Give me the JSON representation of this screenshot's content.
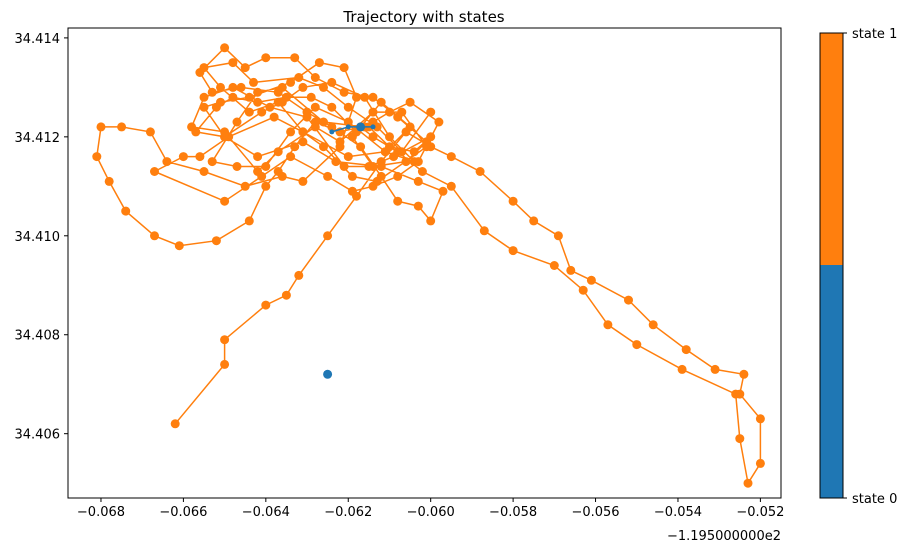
{
  "chart_data": {
    "type": "line",
    "title": "Trajectory with states",
    "xlabel": "",
    "ylabel": "",
    "x_offset_label": "−1.195000000e2",
    "xlim": [
      -0.0688,
      -0.0515
    ],
    "ylim": [
      34.4047,
      34.4142
    ],
    "x_ticks": [
      -0.068,
      -0.066,
      -0.064,
      -0.062,
      -0.06,
      -0.058,
      -0.056,
      -0.054,
      -0.052
    ],
    "x_tick_labels": [
      "−0.068",
      "−0.066",
      "−0.064",
      "−0.062",
      "−0.060",
      "−0.058",
      "−0.056",
      "−0.054",
      "−0.052"
    ],
    "y_ticks": [
      34.406,
      34.408,
      34.41,
      34.412,
      34.414
    ],
    "y_tick_labels": [
      "34.406",
      "34.408",
      "34.410",
      "34.412",
      "34.414"
    ],
    "grid": false,
    "colors": {
      "state_0": "#1f77b4",
      "state_1": "#ff7f0e"
    },
    "colorbar": {
      "labels": [
        "state 0",
        "state 1"
      ]
    },
    "path": [
      [
        -0.0662,
        34.4062
      ],
      [
        -0.065,
        34.4074
      ],
      [
        -0.065,
        34.4079
      ],
      [
        -0.064,
        34.4086
      ],
      [
        -0.0635,
        34.4088
      ],
      [
        -0.0632,
        34.4092
      ],
      [
        -0.0625,
        34.41
      ],
      [
        -0.0618,
        34.4108
      ],
      [
        -0.0612,
        34.4115
      ],
      [
        -0.0606,
        34.4121
      ],
      [
        -0.06,
        34.4118
      ],
      [
        -0.0595,
        34.4116
      ],
      [
        -0.0588,
        34.4113
      ],
      [
        -0.058,
        34.4107
      ],
      [
        -0.0575,
        34.4103
      ],
      [
        -0.0569,
        34.41
      ],
      [
        -0.0566,
        34.4093
      ],
      [
        -0.0561,
        34.4091
      ],
      [
        -0.0552,
        34.4087
      ],
      [
        -0.0546,
        34.4082
      ],
      [
        -0.0538,
        34.4077
      ],
      [
        -0.0531,
        34.4073
      ],
      [
        -0.0524,
        34.4072
      ],
      [
        -0.0525,
        34.4068
      ],
      [
        -0.052,
        34.4063
      ],
      [
        -0.052,
        34.4054
      ],
      [
        -0.0523,
        34.405
      ],
      [
        -0.0525,
        34.4059
      ],
      [
        -0.0526,
        34.4068
      ],
      [
        -0.0539,
        34.4073
      ],
      [
        -0.055,
        34.4078
      ],
      [
        -0.0557,
        34.4082
      ],
      [
        -0.0563,
        34.4089
      ],
      [
        -0.057,
        34.4094
      ],
      [
        -0.058,
        34.4097
      ],
      [
        -0.0587,
        34.4101
      ],
      [
        -0.0595,
        34.411
      ],
      [
        -0.0602,
        34.4113
      ],
      [
        -0.0608,
        34.4117
      ],
      [
        -0.0614,
        34.412
      ],
      [
        -0.0617,
        34.4122
      ],
      [
        -0.0622,
        34.4121
      ],
      [
        -0.0628,
        34.4123
      ],
      [
        -0.0633,
        34.4118
      ],
      [
        -0.0637,
        34.4113
      ],
      [
        -0.064,
        34.411
      ],
      [
        -0.0644,
        34.4103
      ],
      [
        -0.0652,
        34.4099
      ],
      [
        -0.0661,
        34.4098
      ],
      [
        -0.0667,
        34.41
      ],
      [
        -0.0674,
        34.4105
      ],
      [
        -0.0678,
        34.4111
      ],
      [
        -0.0681,
        34.4116
      ],
      [
        -0.068,
        34.4122
      ],
      [
        -0.0675,
        34.4122
      ],
      [
        -0.0668,
        34.4121
      ],
      [
        -0.0664,
        34.4115
      ],
      [
        -0.0655,
        34.4113
      ],
      [
        -0.0645,
        34.411
      ],
      [
        -0.0636,
        34.4112
      ],
      [
        -0.0631,
        34.4111
      ],
      [
        -0.0622,
        34.4118
      ],
      [
        -0.0618,
        34.4128
      ],
      [
        -0.0621,
        34.4134
      ],
      [
        -0.0627,
        34.4135
      ],
      [
        -0.0634,
        34.4131
      ],
      [
        -0.0644,
        34.4128
      ],
      [
        -0.0651,
        34.4127
      ],
      [
        -0.0655,
        34.4126
      ],
      [
        -0.065,
        34.412
      ],
      [
        -0.0642,
        34.4116
      ],
      [
        -0.0631,
        34.4119
      ],
      [
        -0.0623,
        34.4115
      ],
      [
        -0.0612,
        34.4114
      ],
      [
        -0.0603,
        34.4111
      ],
      [
        -0.0597,
        34.4109
      ],
      [
        -0.06,
        34.4103
      ],
      [
        -0.0603,
        34.4106
      ],
      [
        -0.0608,
        34.4107
      ],
      [
        -0.0612,
        34.4112
      ],
      [
        -0.0617,
        34.4118
      ],
      [
        -0.0624,
        34.4122
      ],
      [
        -0.063,
        34.4125
      ],
      [
        -0.0637,
        34.4129
      ],
      [
        -0.0646,
        34.413
      ],
      [
        -0.0653,
        34.4129
      ],
      [
        -0.0656,
        34.4133
      ],
      [
        -0.065,
        34.4138
      ],
      [
        -0.0645,
        34.4134
      ],
      [
        -0.064,
        34.4136
      ],
      [
        -0.0633,
        34.4136
      ],
      [
        -0.0628,
        34.4132
      ],
      [
        -0.0621,
        34.4129
      ],
      [
        -0.0614,
        34.4128
      ],
      [
        -0.0608,
        34.4124
      ],
      [
        -0.0601,
        34.4119
      ],
      [
        -0.0606,
        34.4115
      ],
      [
        -0.0614,
        34.4114
      ],
      [
        -0.0619,
        34.412
      ],
      [
        -0.0612,
        34.4127
      ],
      [
        -0.0605,
        34.4122
      ],
      [
        -0.0611,
        34.4117
      ],
      [
        -0.062,
        34.4116
      ],
      [
        -0.0631,
        34.4121
      ],
      [
        -0.0638,
        34.4124
      ],
      [
        -0.0649,
        34.412
      ],
      [
        -0.0656,
        34.4116
      ],
      [
        -0.066,
        34.4116
      ],
      [
        -0.0667,
        34.4113
      ],
      [
        -0.065,
        34.4107
      ],
      [
        -0.0641,
        34.4112
      ],
      [
        -0.0634,
        34.4116
      ],
      [
        -0.0625,
        34.4112
      ],
      [
        -0.0619,
        34.4109
      ],
      [
        -0.0614,
        34.411
      ],
      [
        -0.0608,
        34.4112
      ],
      [
        -0.0603,
        34.4115
      ],
      [
        -0.0598,
        34.4123
      ],
      [
        -0.0605,
        34.4127
      ],
      [
        -0.061,
        34.4125
      ],
      [
        -0.0614,
        34.4123
      ],
      [
        -0.0618,
        34.4121
      ],
      [
        -0.0624,
        34.4126
      ],
      [
        -0.0629,
        34.4128
      ],
      [
        -0.0635,
        34.4128
      ],
      [
        -0.0642,
        34.4127
      ],
      [
        -0.0648,
        34.4128
      ],
      [
        -0.0652,
        34.4126
      ],
      [
        -0.0657,
        34.4121
      ],
      [
        -0.065,
        34.412
      ],
      [
        -0.0641,
        34.4125
      ],
      [
        -0.0636,
        34.4127
      ],
      [
        -0.0631,
        34.413
      ],
      [
        -0.0624,
        34.4131
      ],
      [
        -0.0616,
        34.4128
      ],
      [
        -0.061,
        34.412
      ],
      [
        -0.0604,
        34.4115
      ],
      [
        -0.0611,
        34.4117
      ],
      [
        -0.062,
        34.4123
      ],
      [
        -0.0628,
        34.4126
      ],
      [
        -0.0634,
        34.4121
      ],
      [
        -0.064,
        34.4114
      ],
      [
        -0.0647,
        34.4114
      ],
      [
        -0.0653,
        34.4115
      ],
      [
        -0.0647,
        34.4123
      ],
      [
        -0.0642,
        34.4129
      ],
      [
        -0.0636,
        34.413
      ],
      [
        -0.0626,
        34.4123
      ],
      [
        -0.0616,
        34.4122
      ],
      [
        -0.0615,
        34.4122
      ],
      [
        -0.061,
        34.4118
      ],
      [
        -0.0604,
        34.4117
      ],
      [
        -0.06,
        34.412
      ],
      [
        -0.0609,
        34.4116
      ],
      [
        -0.0615,
        34.4114
      ],
      [
        -0.0621,
        34.4114
      ],
      [
        -0.063,
        34.4124
      ],
      [
        -0.0639,
        34.4126
      ],
      [
        -0.0648,
        34.413
      ],
      [
        -0.0655,
        34.4128
      ],
      [
        -0.0658,
        34.4122
      ],
      [
        -0.065,
        34.4121
      ],
      [
        -0.0642,
        34.4113
      ],
      [
        -0.0637,
        34.4117
      ],
      [
        -0.0628,
        34.4122
      ],
      [
        -0.0622,
        34.4119
      ],
      [
        -0.0614,
        34.4125
      ],
      [
        -0.0607,
        34.4125
      ],
      [
        -0.0601,
        34.4118
      ],
      [
        -0.0613,
        34.4111
      ],
      [
        -0.0619,
        34.4112
      ],
      [
        -0.0626,
        34.4118
      ],
      [
        -0.0631,
        34.4121
      ],
      [
        -0.0637,
        34.4127
      ],
      [
        -0.0644,
        34.4125
      ],
      [
        -0.0651,
        34.413
      ],
      [
        -0.0655,
        34.4134
      ],
      [
        -0.0648,
        34.4135
      ],
      [
        -0.0643,
        34.4131
      ],
      [
        -0.0632,
        34.4132
      ],
      [
        -0.0626,
        34.413
      ],
      [
        -0.062,
        34.4126
      ],
      [
        -0.0613,
        34.4122
      ],
      [
        -0.0607,
        34.4117
      ],
      [
        -0.06,
        34.4125
      ]
    ],
    "state_0_path": [
      [
        -0.0624,
        34.4121
      ],
      [
        -0.062,
        34.4122
      ],
      [
        -0.0617,
        34.4122
      ],
      [
        -0.0614,
        34.4122
      ]
    ],
    "state_0_points": [
      [
        -0.0617,
        34.4122
      ],
      [
        -0.0625,
        34.4072
      ]
    ]
  }
}
